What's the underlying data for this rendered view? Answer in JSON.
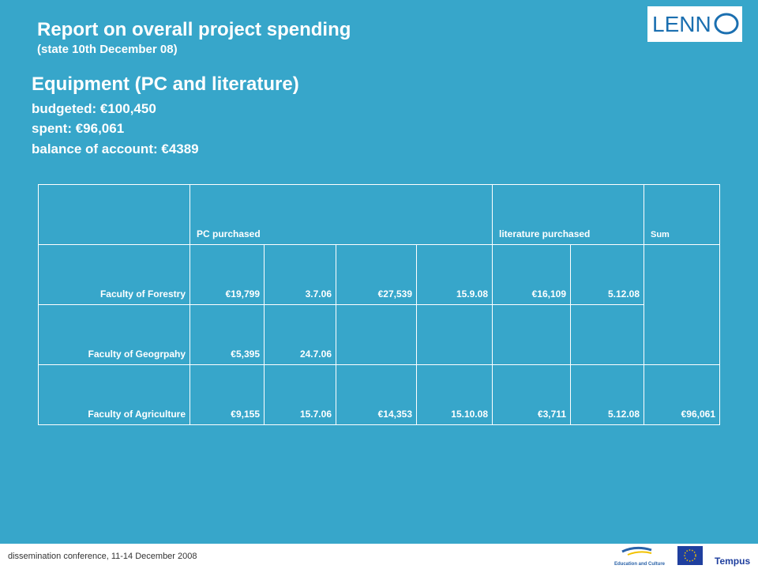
{
  "header": {
    "title": "Report on overall project spending",
    "subtitle": "(state 10th December 08)",
    "logo": "LENN"
  },
  "section": {
    "heading": "Equipment (PC and literature)",
    "lines": [
      "budgeted: €100,450",
      "spent: €96,061",
      "balance of account: €4389"
    ]
  },
  "table": {
    "columns": [
      "PC purchased",
      "literature purchased",
      "Sum"
    ],
    "rows": [
      [
        "Faculty of Forestry",
        "€19,799",
        "3.7.06",
        "€27,539",
        "15.9.08",
        "€16,109",
        "5.12.08"
      ],
      [
        "Faculty of Geogrpahy",
        "€5,395",
        "24.7.06"
      ],
      [
        "Faculty of Agriculture",
        "€9,155",
        "15.7.06",
        "€14,353",
        "15.10.08",
        "€3,711",
        "5.12.08",
        "€96,061"
      ]
    ]
  },
  "footer": {
    "text": "dissemination conference, 11-14 December 2008",
    "logos": [
      "Education and Culture",
      "Tempus"
    ]
  }
}
